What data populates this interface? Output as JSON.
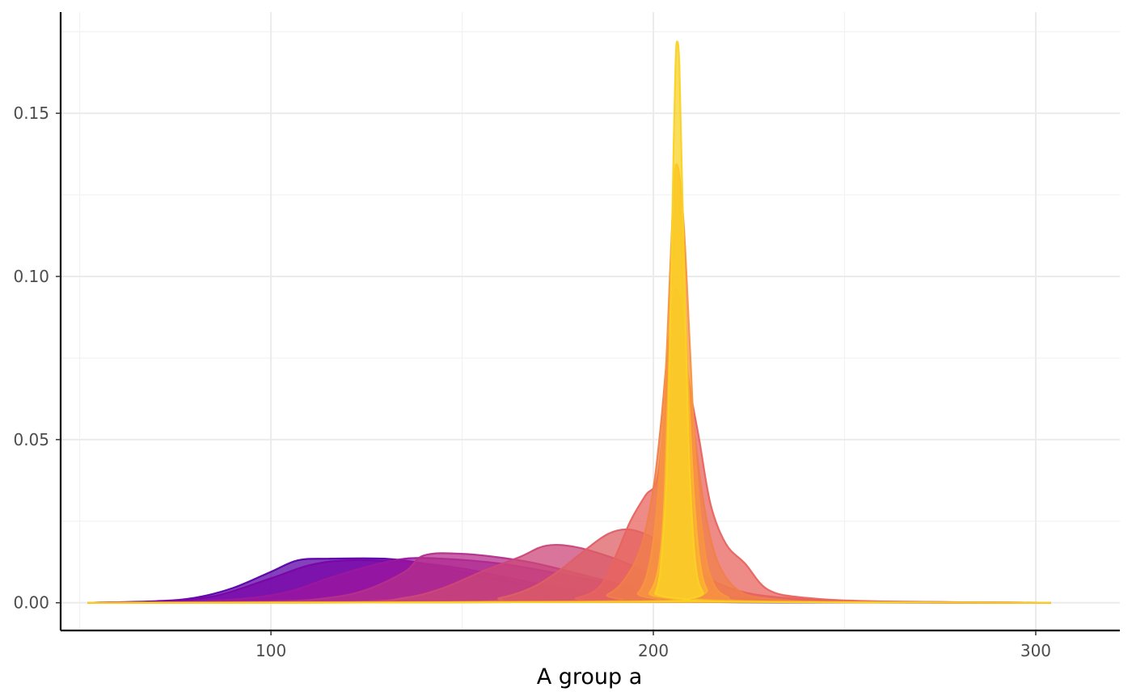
{
  "chart_data": {
    "type": "area",
    "subtype": "overlapping density",
    "title": "",
    "xlabel": "A group a",
    "ylabel": "",
    "xlim": [
      45,
      322
    ],
    "ylim": [
      -0.0085,
      0.181
    ],
    "x_ticks": [
      100,
      200,
      300
    ],
    "x_tick_labels": [
      "100",
      "200",
      "300"
    ],
    "y_ticks": [
      0.0,
      0.05,
      0.1,
      0.15
    ],
    "y_tick_labels": [
      "0.00",
      "0.05",
      "0.10",
      "0.15"
    ],
    "grid": true,
    "legend": "none",
    "series": [
      {
        "color": "#5b01a5",
        "points": [
          [
            52,
            0
          ],
          [
            70,
            0.0005
          ],
          [
            80,
            0.0015
          ],
          [
            90,
            0.0045
          ],
          [
            100,
            0.0095
          ],
          [
            107,
            0.013
          ],
          [
            115,
            0.0135
          ],
          [
            130,
            0.0135
          ],
          [
            140,
            0.012
          ],
          [
            150,
            0.0095
          ],
          [
            160,
            0.007
          ],
          [
            175,
            0.0035
          ],
          [
            190,
            0.0012
          ],
          [
            205,
            0.0004
          ],
          [
            230,
            0.0001
          ],
          [
            304,
            0
          ]
        ]
      },
      {
        "color": "#7a04a8",
        "points": [
          [
            52,
            0
          ],
          [
            70,
            0.0004
          ],
          [
            85,
            0.002
          ],
          [
            100,
            0.0075
          ],
          [
            110,
            0.0115
          ],
          [
            120,
            0.013
          ],
          [
            135,
            0.0125
          ],
          [
            150,
            0.0105
          ],
          [
            165,
            0.007
          ],
          [
            180,
            0.0035
          ],
          [
            195,
            0.0012
          ],
          [
            210,
            0.0004
          ],
          [
            240,
            0.0001
          ],
          [
            304,
            0
          ]
        ]
      },
      {
        "color": "#9c179e",
        "points": [
          [
            52,
            0
          ],
          [
            80,
            0.0004
          ],
          [
            95,
            0.0015
          ],
          [
            105,
            0.0035
          ],
          [
            115,
            0.0075
          ],
          [
            125,
            0.011
          ],
          [
            135,
            0.0135
          ],
          [
            145,
            0.0135
          ],
          [
            160,
            0.012
          ],
          [
            175,
            0.009
          ],
          [
            190,
            0.0055
          ],
          [
            200,
            0.003
          ],
          [
            215,
            0.001
          ],
          [
            240,
            0.0002
          ],
          [
            304,
            0
          ]
        ]
      },
      {
        "color": "#b52f8c",
        "points": [
          [
            52,
            0
          ],
          [
            100,
            0.0004
          ],
          [
            115,
            0.0015
          ],
          [
            125,
            0.004
          ],
          [
            135,
            0.0095
          ],
          [
            140,
            0.0145
          ],
          [
            150,
            0.015
          ],
          [
            165,
            0.013
          ],
          [
            175,
            0.0105
          ],
          [
            185,
            0.0075
          ],
          [
            195,
            0.0045
          ],
          [
            205,
            0.002
          ],
          [
            220,
            0.0007
          ],
          [
            245,
            0.0002
          ],
          [
            304,
            0
          ]
        ]
      },
      {
        "color": "#cc4778",
        "points": [
          [
            52,
            0
          ],
          [
            120,
            0.0003
          ],
          [
            135,
            0.0015
          ],
          [
            145,
            0.0045
          ],
          [
            155,
            0.0095
          ],
          [
            165,
            0.014
          ],
          [
            172,
            0.0175
          ],
          [
            180,
            0.017
          ],
          [
            190,
            0.0135
          ],
          [
            198,
            0.0095
          ],
          [
            205,
            0.0055
          ],
          [
            212,
            0.003
          ],
          [
            225,
            0.0012
          ],
          [
            250,
            0.0004
          ],
          [
            304,
            0
          ]
        ]
      },
      {
        "color": "#de5f65",
        "points": [
          [
            52,
            0
          ],
          [
            150,
            0.0003
          ],
          [
            160,
            0.0015
          ],
          [
            168,
            0.0045
          ],
          [
            175,
            0.0095
          ],
          [
            182,
            0.016
          ],
          [
            188,
            0.021
          ],
          [
            193,
            0.0225
          ],
          [
            198,
            0.021
          ],
          [
            203,
            0.0175
          ],
          [
            208,
            0.013
          ],
          [
            213,
            0.0085
          ],
          [
            220,
            0.0045
          ],
          [
            230,
            0.002
          ],
          [
            250,
            0.0005
          ],
          [
            270,
            0.0002
          ],
          [
            304,
            0
          ]
        ]
      },
      {
        "color": "#e8645f",
        "points": [
          [
            52,
            0
          ],
          [
            170,
            0.0003
          ],
          [
            180,
            0.0015
          ],
          [
            186,
            0.005
          ],
          [
            190,
            0.014
          ],
          [
            194,
            0.025
          ],
          [
            198,
            0.033
          ],
          [
            201,
            0.038
          ],
          [
            203,
            0.06
          ],
          [
            205,
            0.092
          ],
          [
            207,
            0.093
          ],
          [
            209,
            0.07
          ],
          [
            212,
            0.05
          ],
          [
            215,
            0.03
          ],
          [
            219,
            0.018
          ],
          [
            224,
            0.012
          ],
          [
            230,
            0.004
          ],
          [
            240,
            0.0015
          ],
          [
            260,
            0.0004
          ],
          [
            304,
            0
          ]
        ]
      },
      {
        "color": "#f0804a",
        "points": [
          [
            52,
            0
          ],
          [
            180,
            0.0003
          ],
          [
            188,
            0.0025
          ],
          [
            193,
            0.008
          ],
          [
            197,
            0.018
          ],
          [
            200,
            0.035
          ],
          [
            202,
            0.055
          ],
          [
            204,
            0.08
          ],
          [
            206,
            0.089
          ],
          [
            208,
            0.08
          ],
          [
            210,
            0.06
          ],
          [
            212,
            0.04
          ],
          [
            214,
            0.025
          ],
          [
            217,
            0.012
          ],
          [
            222,
            0.004
          ],
          [
            230,
            0.0012
          ],
          [
            250,
            0.0002
          ],
          [
            304,
            0
          ]
        ]
      },
      {
        "color": "#f89540",
        "points": [
          [
            52,
            0
          ],
          [
            190,
            0.0003
          ],
          [
            196,
            0.003
          ],
          [
            199,
            0.012
          ],
          [
            201,
            0.03
          ],
          [
            203,
            0.065
          ],
          [
            204.5,
            0.105
          ],
          [
            205.5,
            0.13
          ],
          [
            206.5,
            0.133
          ],
          [
            208,
            0.115
          ],
          [
            209.5,
            0.08
          ],
          [
            211,
            0.045
          ],
          [
            213,
            0.02
          ],
          [
            215,
            0.008
          ],
          [
            219,
            0.002
          ],
          [
            230,
            0.0004
          ],
          [
            304,
            0
          ]
        ]
      },
      {
        "color": "#fdb42f",
        "points": [
          [
            52,
            0
          ],
          [
            195,
            0.0003
          ],
          [
            199,
            0.003
          ],
          [
            201.5,
            0.012
          ],
          [
            203,
            0.035
          ],
          [
            204.5,
            0.09
          ],
          [
            205.5,
            0.13
          ],
          [
            206.5,
            0.131
          ],
          [
            207.5,
            0.11
          ],
          [
            209,
            0.07
          ],
          [
            210.5,
            0.035
          ],
          [
            212,
            0.014
          ],
          [
            214,
            0.004
          ],
          [
            218,
            0.0006
          ],
          [
            304,
            0
          ]
        ]
      },
      {
        "color": "#fad225",
        "points": [
          [
            52,
            0
          ],
          [
            198,
            0.0003
          ],
          [
            200.5,
            0.003
          ],
          [
            202,
            0.012
          ],
          [
            203.5,
            0.04
          ],
          [
            204.5,
            0.09
          ],
          [
            205.3,
            0.14
          ],
          [
            205.8,
            0.165
          ],
          [
            206.2,
            0.172
          ],
          [
            206.8,
            0.165
          ],
          [
            207.5,
            0.13
          ],
          [
            208.5,
            0.08
          ],
          [
            209.5,
            0.04
          ],
          [
            211,
            0.012
          ],
          [
            213,
            0.003
          ],
          [
            216,
            0.0004
          ],
          [
            304,
            0
          ]
        ]
      }
    ]
  }
}
